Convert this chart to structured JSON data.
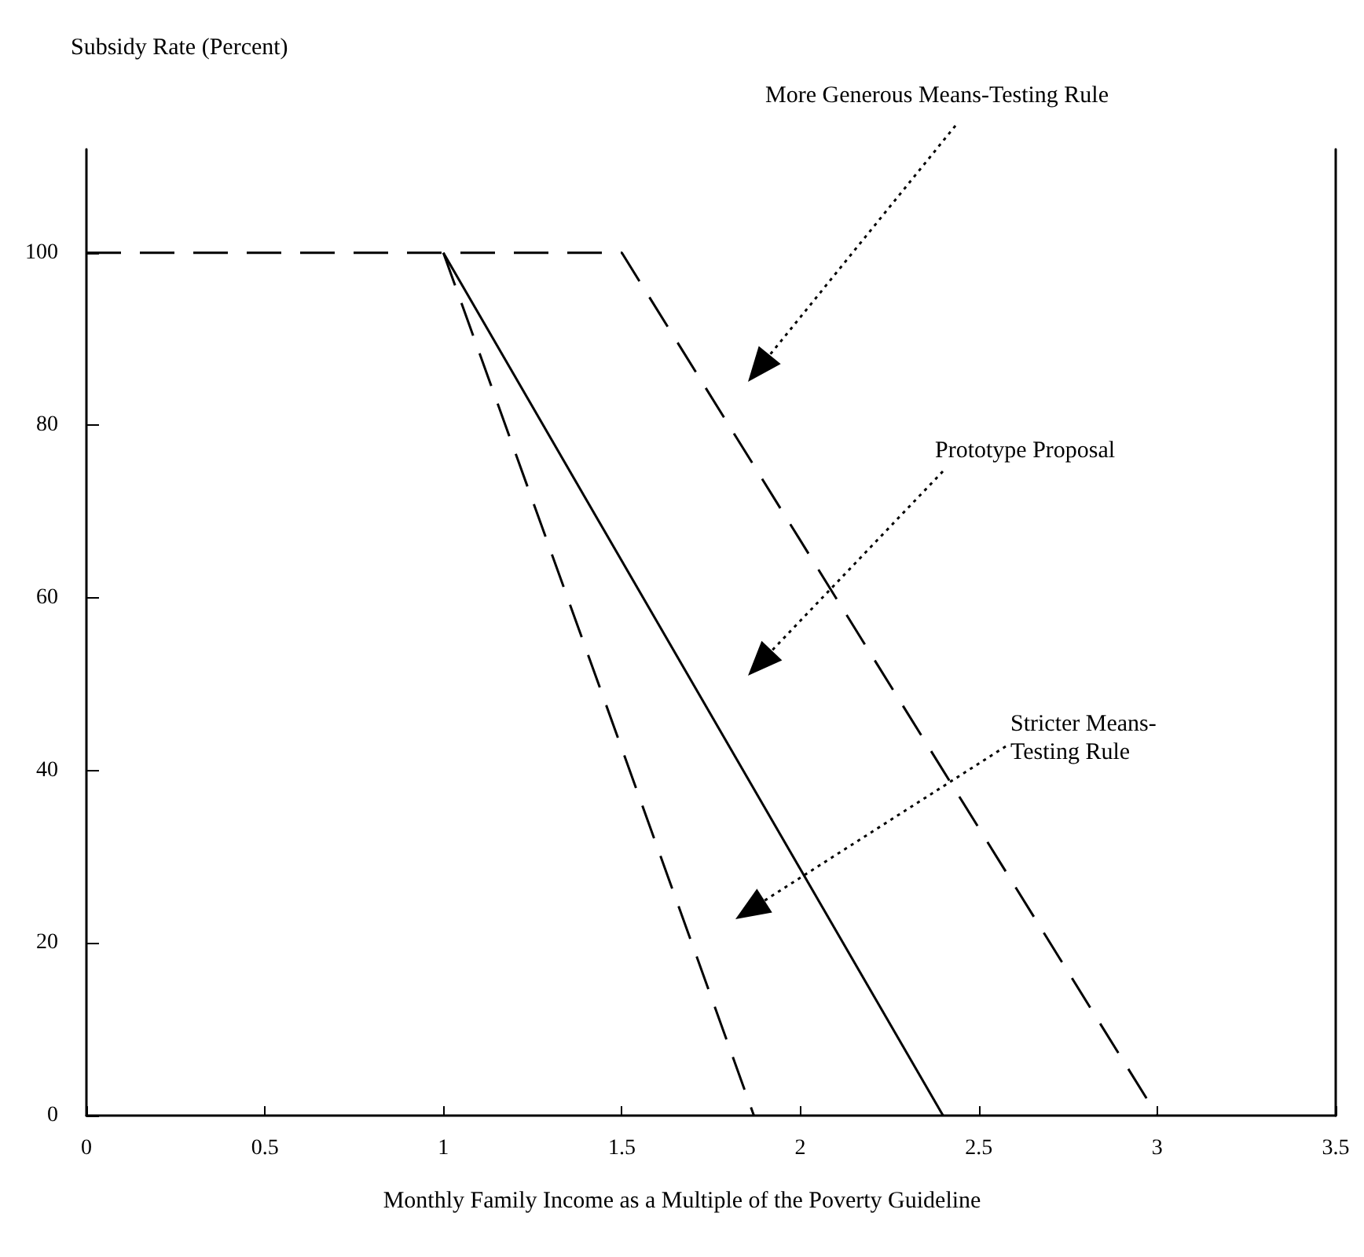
{
  "chart_data": {
    "type": "line",
    "ylabel": "Subsidy Rate (Percent)",
    "xlabel": "Monthly Family Income as a Multiple of the Poverty Guideline",
    "series": [
      {
        "color": "#000000",
        "line_style": "dashed",
        "x": [
          0,
          1.5,
          3
        ],
        "values": [
          100,
          100,
          0
        ]
      },
      {
        "color": "#000000",
        "line_style": "solid",
        "x": [
          1,
          2.4
        ],
        "values": [
          100,
          0
        ]
      },
      {
        "color": "#000000",
        "line_style": "dashed",
        "x": [
          1,
          1.87
        ],
        "values": [
          100,
          0
        ]
      }
    ],
    "xlim": [
      0,
      3.5
    ],
    "xticks": [
      0,
      0.5,
      1,
      1.5,
      2,
      2.5,
      3,
      3.5
    ],
    "ylim": [
      0,
      112
    ],
    "yticks": [
      0,
      20,
      40,
      60,
      80,
      100
    ],
    "grid": false,
    "marker": "none",
    "annotations": [
      "More Generous Means-Testing Rule",
      "Prototype Proposal",
      "Stricter Means-Testing Rule"
    ]
  }
}
